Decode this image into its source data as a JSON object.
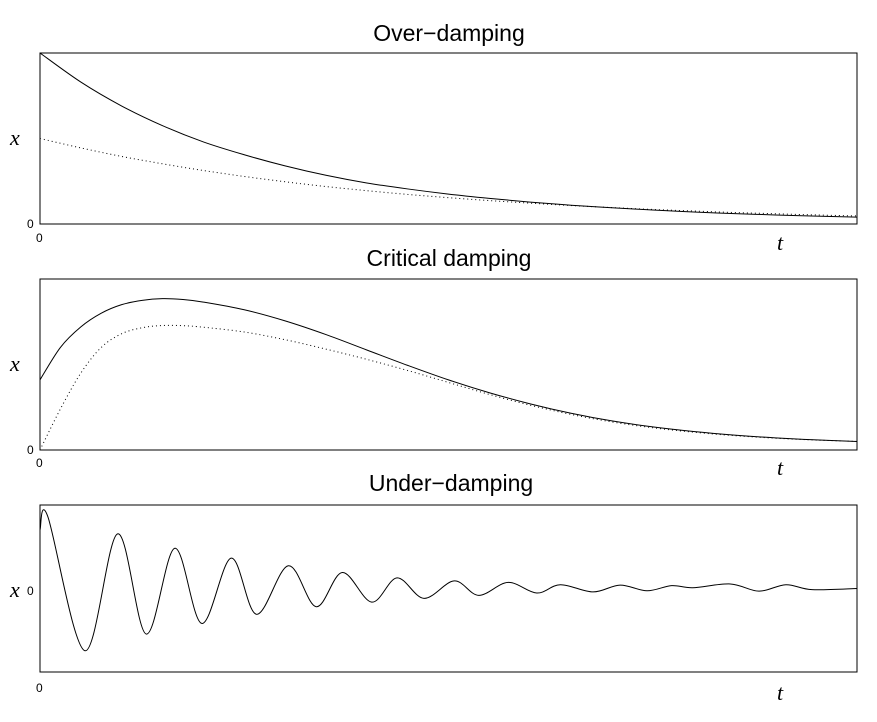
{
  "chart_data": [
    {
      "id": "over",
      "type": "line",
      "title": "Over−damping",
      "xlabel": "t",
      "ylabel": "x",
      "xtick_labels": [
        "0"
      ],
      "ytick_labels": [
        "0"
      ],
      "xlim": [
        0,
        10
      ],
      "ylim": [
        0,
        1
      ],
      "grid": false,
      "series": [
        {
          "name": "solid",
          "style": "solid",
          "x": [
            0,
            0.5,
            1,
            1.5,
            2,
            2.5,
            3,
            3.5,
            4,
            4.5,
            5,
            5.5,
            6,
            6.5,
            7,
            7.5,
            8,
            8.5,
            9,
            9.5,
            10
          ],
          "y": [
            1.0,
            0.83,
            0.69,
            0.575,
            0.48,
            0.405,
            0.34,
            0.285,
            0.24,
            0.205,
            0.175,
            0.15,
            0.128,
            0.11,
            0.095,
            0.082,
            0.07,
            0.061,
            0.053,
            0.046,
            0.04
          ]
        },
        {
          "name": "dotted",
          "style": "dotted",
          "x": [
            0,
            0.5,
            1,
            1.5,
            2,
            2.5,
            3,
            3.5,
            4,
            4.5,
            5,
            5.5,
            6,
            6.5,
            7,
            7.5,
            8,
            8.5,
            9,
            9.5,
            10
          ],
          "y": [
            0.5,
            0.445,
            0.395,
            0.352,
            0.313,
            0.278,
            0.247,
            0.219,
            0.195,
            0.173,
            0.154,
            0.137,
            0.122,
            0.108,
            0.096,
            0.085,
            0.076,
            0.067,
            0.06,
            0.053,
            0.047
          ]
        }
      ]
    },
    {
      "id": "critical",
      "type": "line",
      "title": "Critical damping",
      "xlabel": "t",
      "ylabel": "x",
      "xtick_labels": [
        "0"
      ],
      "ytick_labels": [
        "0"
      ],
      "xlim": [
        0,
        10
      ],
      "ylim": [
        0,
        1
      ],
      "grid": false,
      "series": [
        {
          "name": "solid",
          "style": "solid",
          "x": [
            0,
            0.25,
            0.5,
            0.75,
            1,
            1.25,
            1.5,
            1.75,
            2,
            2.5,
            3,
            3.5,
            4,
            4.5,
            5,
            5.5,
            6,
            6.5,
            7,
            7.5,
            8,
            8.5,
            9,
            9.5,
            10
          ],
          "y": [
            0.41,
            0.6,
            0.72,
            0.8,
            0.85,
            0.875,
            0.885,
            0.88,
            0.865,
            0.82,
            0.755,
            0.675,
            0.585,
            0.495,
            0.41,
            0.335,
            0.27,
            0.215,
            0.17,
            0.135,
            0.108,
            0.087,
            0.071,
            0.059,
            0.05
          ]
        },
        {
          "name": "dotted",
          "style": "dotted",
          "x": [
            0,
            0.25,
            0.5,
            0.75,
            1,
            1.25,
            1.5,
            1.75,
            2,
            2.5,
            3,
            3.5,
            4,
            4.5,
            5,
            5.5,
            6,
            6.5,
            7,
            7.5,
            8,
            8.5,
            9,
            9.5,
            10
          ],
          "y": [
            0.0,
            0.24,
            0.45,
            0.6,
            0.68,
            0.715,
            0.728,
            0.727,
            0.718,
            0.69,
            0.645,
            0.59,
            0.53,
            0.465,
            0.395,
            0.325,
            0.262,
            0.208,
            0.164,
            0.13,
            0.104,
            0.084,
            0.069,
            0.058,
            0.05
          ]
        }
      ]
    },
    {
      "id": "under",
      "type": "line",
      "title": "Under−damping",
      "xlabel": "t",
      "ylabel": "x",
      "xtick_labels": [
        "0"
      ],
      "ytick_labels": [
        "0"
      ],
      "xlim": [
        0,
        10
      ],
      "ylim": [
        -1.1,
        1.1
      ],
      "grid": false,
      "series": [
        {
          "name": "solid",
          "style": "solid",
          "x": [
            0,
            0.095,
            0.55,
            0.95,
            1.3,
            1.65,
            1.98,
            2.34,
            2.65,
            3.04,
            3.38,
            3.7,
            4.06,
            4.37,
            4.7,
            5.07,
            5.37,
            5.73,
            6.08,
            6.37,
            6.77,
            7.1,
            7.43,
            7.73,
            7.99,
            8.45,
            8.8,
            9.13,
            9.45,
            10
          ],
          "y": [
            0.77,
            0.95,
            -0.82,
            0.72,
            -0.6,
            0.53,
            -0.46,
            0.4,
            -0.34,
            0.3,
            -0.24,
            0.21,
            -0.18,
            0.14,
            -0.13,
            0.1,
            -0.09,
            0.08,
            -0.06,
            0.05,
            -0.045,
            0.045,
            -0.03,
            0.038,
            0.01,
            0.06,
            -0.035,
            0.05,
            -0.015,
            0.0
          ]
        }
      ]
    }
  ]
}
